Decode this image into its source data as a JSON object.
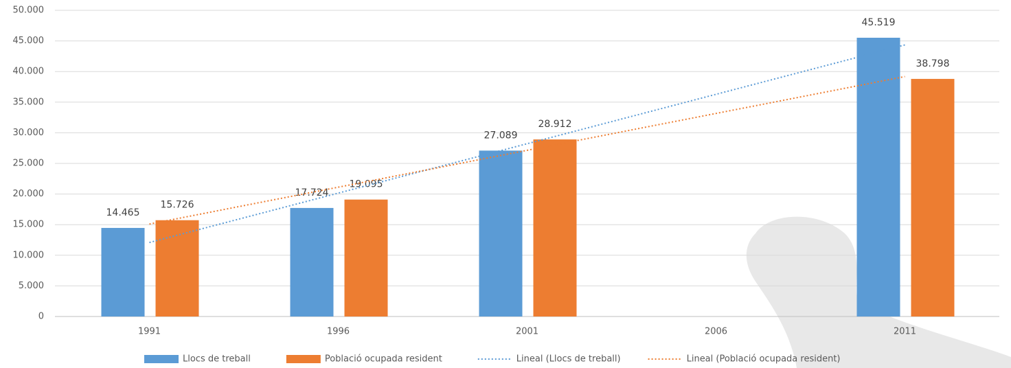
{
  "chart_data": {
    "type": "bar",
    "categories": [
      "1991",
      "1996",
      "2001",
      "2006",
      "2011"
    ],
    "series": [
      {
        "name": "Llocs de treball",
        "color": "#5b9bd5",
        "values": [
          14465,
          17724,
          27089,
          null,
          45519
        ],
        "value_labels": [
          "14.465",
          "17.724",
          "27.089",
          null,
          "45.519"
        ]
      },
      {
        "name": "Població ocupada resident",
        "color": "#ed7d31",
        "values": [
          15726,
          19095,
          28912,
          null,
          38798
        ],
        "value_labels": [
          "15.726",
          "19.095",
          "28.912",
          null,
          "38.798"
        ]
      }
    ],
    "trendlines": [
      {
        "name": "Lineal (Llocs de treball)",
        "color": "#5b9bd5"
      },
      {
        "name": "Lineal (Població ocupada resident)",
        "color": "#ed7d31"
      }
    ],
    "ylim": [
      0,
      50000
    ],
    "yticks": [
      0,
      {
        "value": 5000,
        "label": "5.000"
      },
      {
        "value": 10000,
        "label": "10.000"
      },
      {
        "value": 15000,
        "label": "15.000"
      },
      {
        "value": 20000,
        "label": "20.000"
      },
      {
        "value": 25000,
        "label": "25.000"
      },
      {
        "value": 30000,
        "label": "30.000"
      },
      {
        "value": 35000,
        "label": "35.000"
      },
      {
        "value": 40000,
        "label": "40.000"
      },
      {
        "value": 45000,
        "label": "45.000"
      },
      {
        "value": 50000,
        "label": "50.000"
      }
    ],
    "grid": true,
    "legend": "bottom"
  }
}
